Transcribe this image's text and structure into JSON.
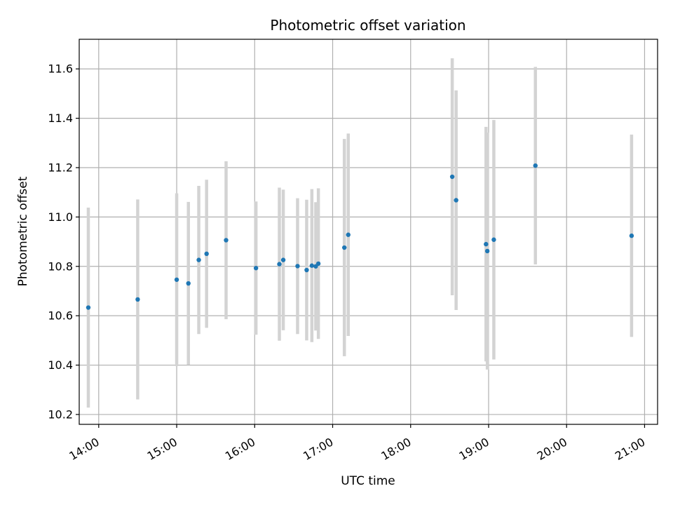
{
  "chart_data": {
    "type": "scatter",
    "title": "Photometric offset variation",
    "xlabel": "UTC time",
    "ylabel": "Photometric offset",
    "xlim": [
      "13:45",
      "21:10"
    ],
    "ylim": [
      10.16,
      11.72
    ],
    "xticks": [
      "14:00",
      "15:00",
      "16:00",
      "17:00",
      "18:00",
      "19:00",
      "20:00",
      "21:00"
    ],
    "yticks": [
      10.2,
      10.4,
      10.6,
      10.8,
      11.0,
      11.2,
      11.4,
      11.6
    ],
    "grid": true,
    "point_color": "#1f77b4",
    "errorbar_color": "#d3d3d3",
    "points": [
      {
        "x": "13:52",
        "y": 10.633,
        "err": 0.405
      },
      {
        "x": "14:30",
        "y": 10.666,
        "err": 0.405
      },
      {
        "x": "15:00",
        "y": 10.746,
        "err": 0.35
      },
      {
        "x": "15:09",
        "y": 10.731,
        "err": 0.33
      },
      {
        "x": "15:17",
        "y": 10.826,
        "err": 0.3
      },
      {
        "x": "15:23",
        "y": 10.851,
        "err": 0.3
      },
      {
        "x": "15:38",
        "y": 10.906,
        "err": 0.32
      },
      {
        "x": "16:01",
        "y": 10.793,
        "err": 0.27
      },
      {
        "x": "16:19",
        "y": 10.809,
        "err": 0.31
      },
      {
        "x": "16:22",
        "y": 10.826,
        "err": 0.285
      },
      {
        "x": "16:33",
        "y": 10.801,
        "err": 0.275
      },
      {
        "x": "16:40",
        "y": 10.785,
        "err": 0.285
      },
      {
        "x": "16:44",
        "y": 10.803,
        "err": 0.31
      },
      {
        "x": "16:47",
        "y": 10.8,
        "err": 0.26
      },
      {
        "x": "16:49",
        "y": 10.811,
        "err": 0.305
      },
      {
        "x": "17:09",
        "y": 10.876,
        "err": 0.44
      },
      {
        "x": "17:12",
        "y": 10.928,
        "err": 0.41
      },
      {
        "x": "18:32",
        "y": 11.163,
        "err": 0.48
      },
      {
        "x": "18:35",
        "y": 11.068,
        "err": 0.445
      },
      {
        "x": "18:58",
        "y": 10.89,
        "err": 0.475
      },
      {
        "x": "18:59",
        "y": 10.862,
        "err": 0.48
      },
      {
        "x": "19:04",
        "y": 10.908,
        "err": 0.485
      },
      {
        "x": "19:36",
        "y": 11.208,
        "err": 0.4
      },
      {
        "x": "20:50",
        "y": 10.924,
        "err": 0.41
      }
    ]
  }
}
